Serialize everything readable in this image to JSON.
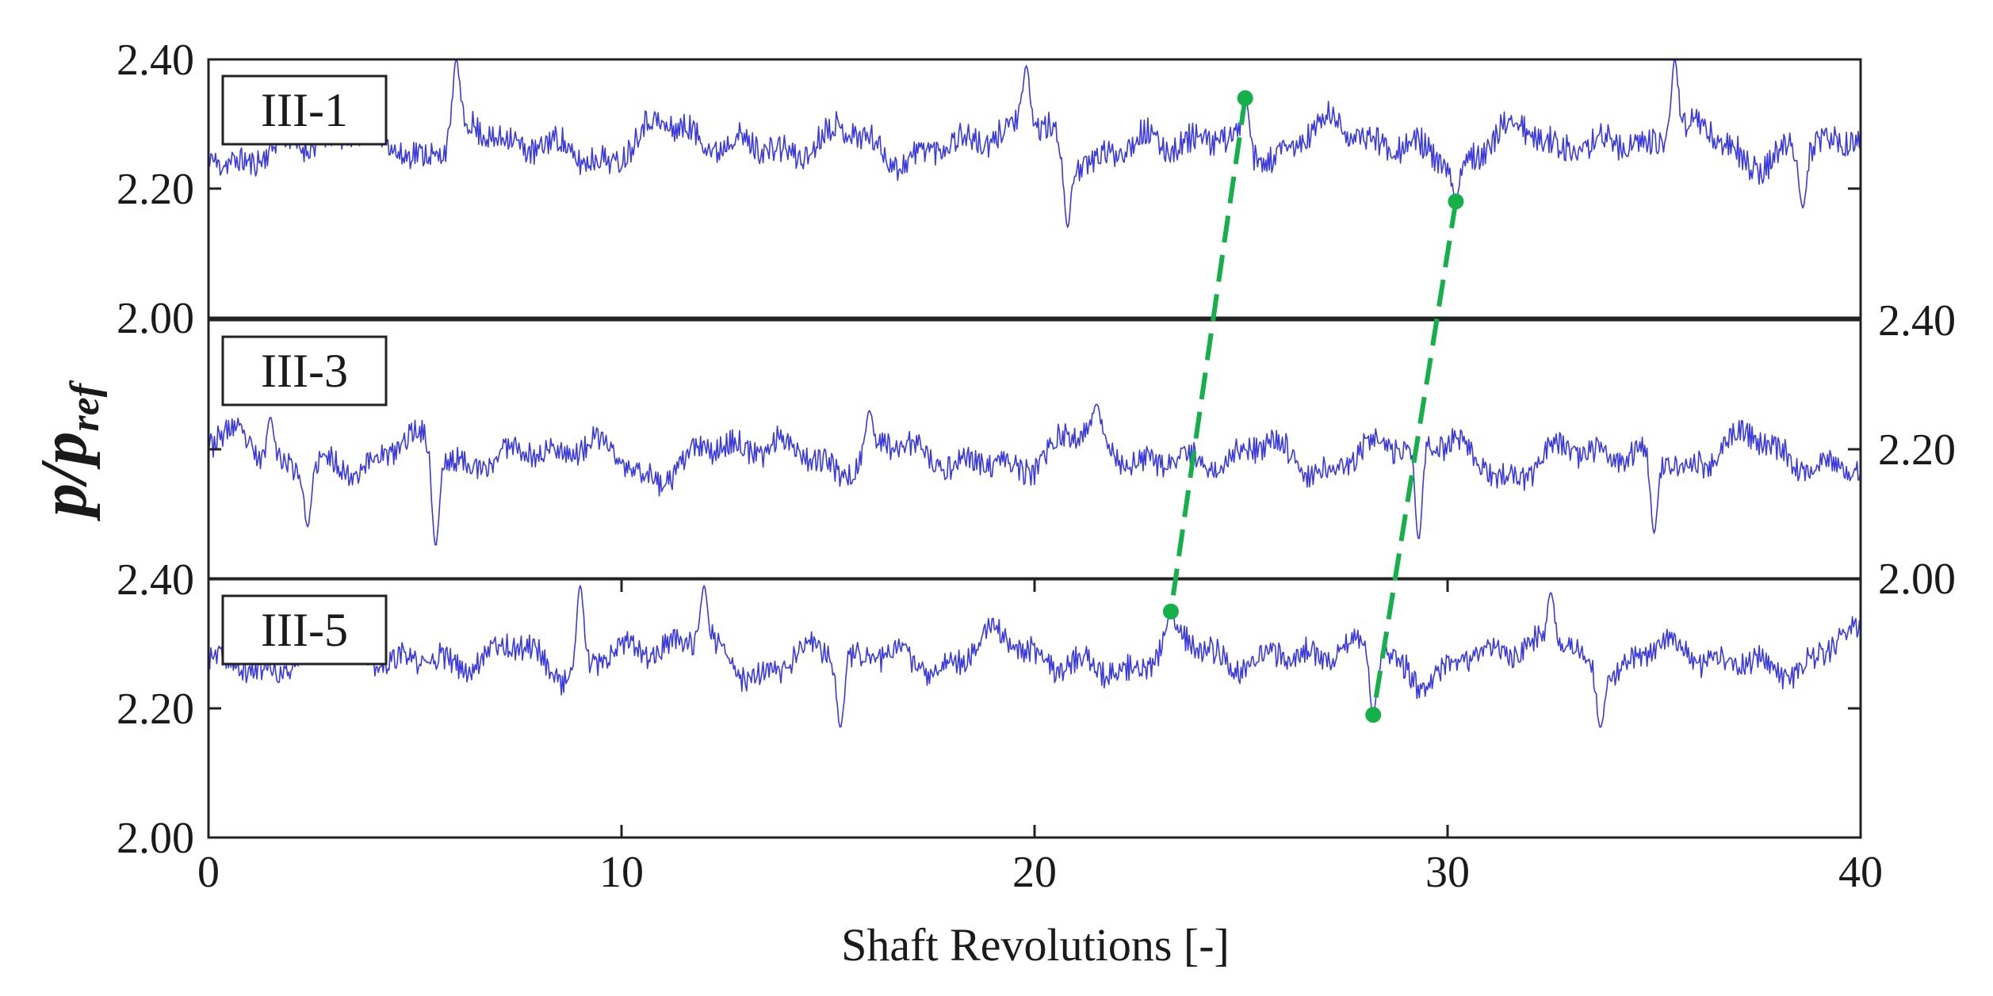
{
  "chart_data": {
    "type": "line",
    "xlabel": "Shaft Revolutions [-]",
    "ylabel": {
      "main": "p/p",
      "subscript": "ref"
    },
    "xlim": [
      0,
      40
    ],
    "x_ticks": [
      "0",
      "10",
      "20",
      "30",
      "40"
    ],
    "line_color": "#3a3adf",
    "marker_color": "#16b04a",
    "panels": [
      {
        "label": "III-1",
        "ylim": [
          2.0,
          2.4
        ],
        "y_axis_side": "left",
        "y_ticks": [
          "2.00",
          "2.20",
          "2.40"
        ],
        "series_mean": 2.27,
        "series_fluct": 0.045,
        "series_seed": 11,
        "features": [
          {
            "x": 6.0,
            "y": 2.4
          },
          {
            "x": 19.8,
            "y": 2.39
          },
          {
            "x": 20.8,
            "y": 2.14
          },
          {
            "x": 25.1,
            "y": 2.34
          },
          {
            "x": 30.2,
            "y": 2.18
          },
          {
            "x": 35.5,
            "y": 2.4
          },
          {
            "x": 38.6,
            "y": 2.17
          }
        ]
      },
      {
        "label": "III-3",
        "ylim": [
          2.0,
          2.4
        ],
        "y_axis_side": "right",
        "y_ticks": [
          "2.00",
          "2.20",
          "2.40"
        ],
        "series_mean": 2.19,
        "series_fluct": 0.04,
        "series_seed": 23,
        "features": [
          {
            "x": 1.5,
            "y": 2.25
          },
          {
            "x": 2.4,
            "y": 2.08
          },
          {
            "x": 5.5,
            "y": 2.05
          },
          {
            "x": 16.0,
            "y": 2.26
          },
          {
            "x": 21.5,
            "y": 2.27
          },
          {
            "x": 29.3,
            "y": 2.06
          },
          {
            "x": 35.0,
            "y": 2.07
          }
        ]
      },
      {
        "label": "III-5",
        "ylim": [
          2.0,
          2.4
        ],
        "y_axis_side": "left",
        "y_ticks": [
          "2.00",
          "2.20",
          "2.40"
        ],
        "series_mean": 2.28,
        "series_fluct": 0.04,
        "series_seed": 37,
        "features": [
          {
            "x": 9.0,
            "y": 2.39
          },
          {
            "x": 12.0,
            "y": 2.39
          },
          {
            "x": 15.3,
            "y": 2.17
          },
          {
            "x": 23.3,
            "y": 2.35
          },
          {
            "x": 28.2,
            "y": 2.19
          },
          {
            "x": 32.5,
            "y": 2.38
          },
          {
            "x": 33.7,
            "y": 2.17
          }
        ]
      }
    ],
    "links": [
      {
        "from": {
          "panel": 0,
          "x": 25.1,
          "y": 2.34
        },
        "to": {
          "panel": 2,
          "x": 23.3,
          "y": 2.35
        }
      },
      {
        "from": {
          "panel": 0,
          "x": 30.2,
          "y": 2.18
        },
        "to": {
          "panel": 2,
          "x": 28.2,
          "y": 2.19
        }
      }
    ]
  }
}
